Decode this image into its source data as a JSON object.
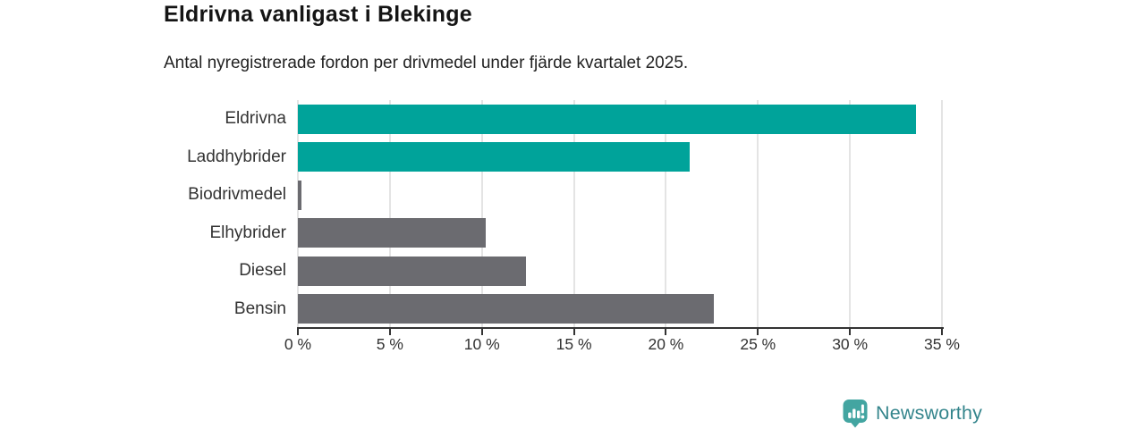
{
  "chart_data": {
    "type": "bar",
    "orientation": "horizontal",
    "title": "Eldrivna vanligast i Blekinge",
    "subtitle": "Antal nyregistrerade fordon per drivmedel under fjärde kvartalet 2025.",
    "categories": [
      "Eldrivna",
      "Laddhybrider",
      "Biodrivmedel",
      "Elhybrider",
      "Diesel",
      "Bensin"
    ],
    "values": [
      33.6,
      21.3,
      0.2,
      10.2,
      12.4,
      22.6
    ],
    "unit": "%",
    "bar_colors": [
      "#00a39a",
      "#00a39a",
      "#6b6b70",
      "#6b6b70",
      "#6b6b70",
      "#6b6b70"
    ],
    "accent_color": "#00a39a",
    "neutral_color": "#6b6b70",
    "xlim": [
      0,
      35
    ],
    "x_ticks": [
      0,
      5,
      10,
      15,
      20,
      25,
      30,
      35
    ],
    "x_tick_labels": [
      "0 %",
      "5 %",
      "10 %",
      "15 %",
      "20 %",
      "25 %",
      "30 %",
      "35 %"
    ],
    "grid": "vertical-gridlines",
    "legend": "none"
  },
  "branding": {
    "name": "Newsworthy",
    "icon": "bar-chart-speech-bubble-icon",
    "icon_color": "#43a5a1",
    "text_color": "#34858c"
  }
}
